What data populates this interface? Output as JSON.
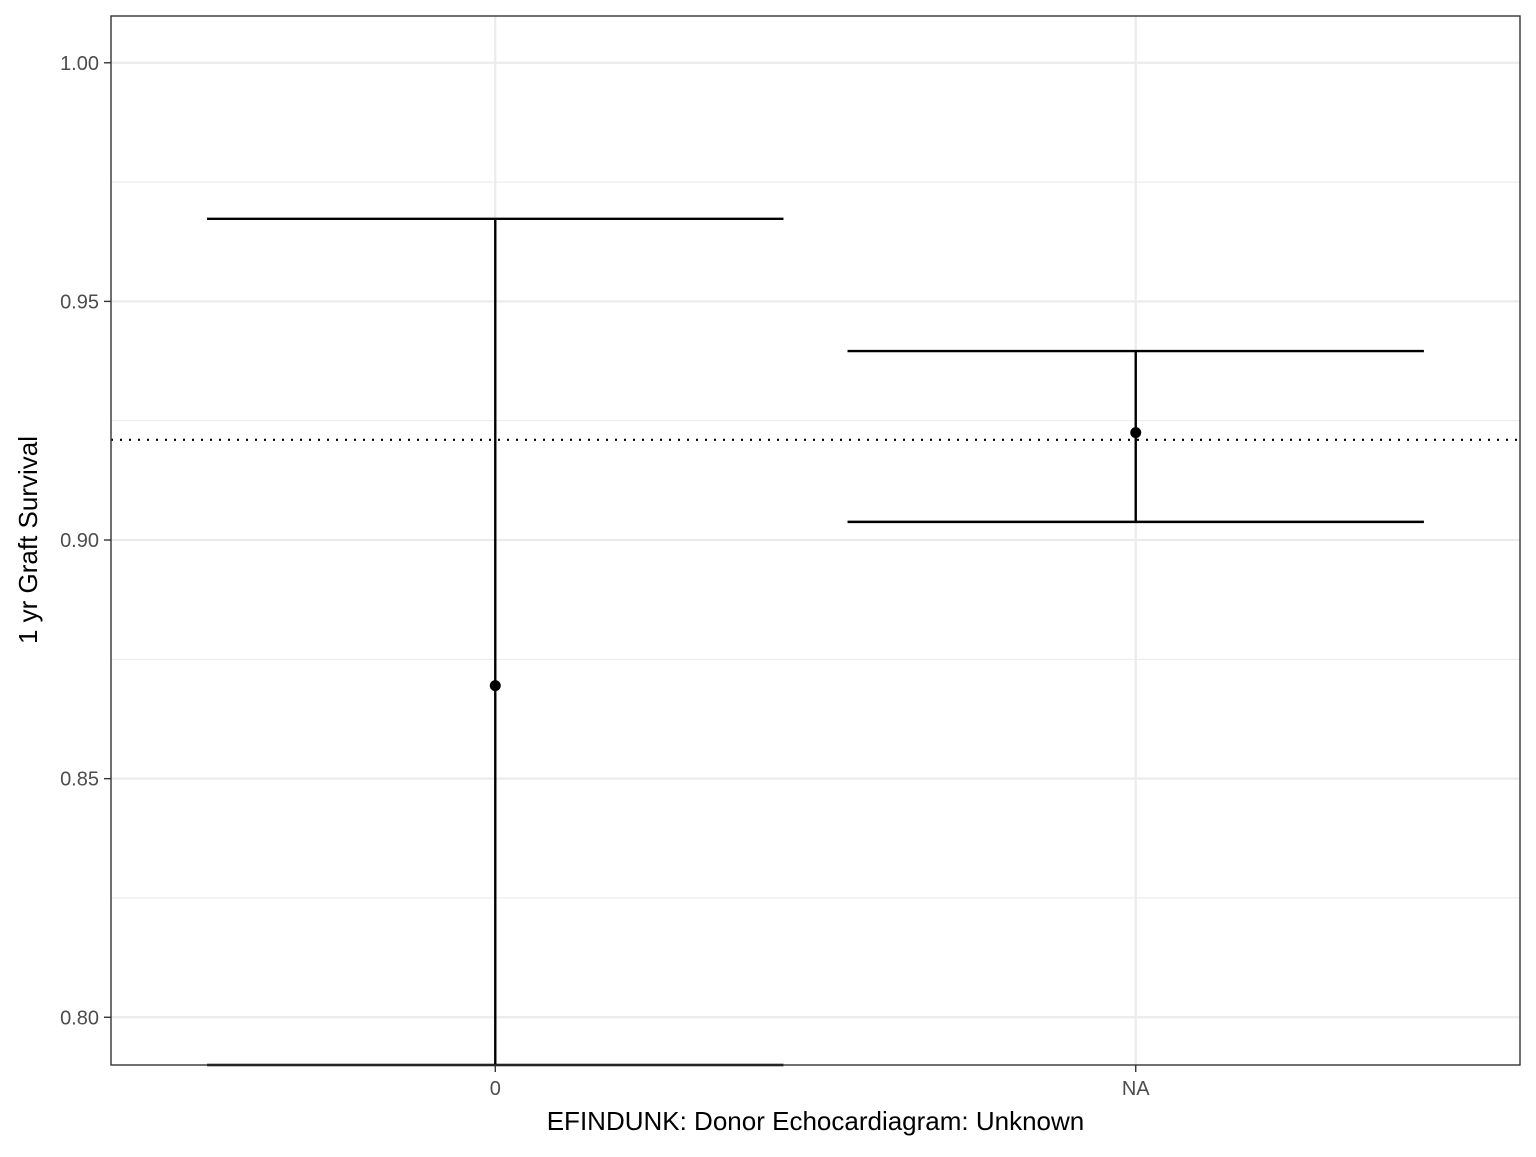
{
  "chart_data": {
    "type": "errorbar",
    "title": "",
    "xlabel": "EFINDUNK: Donor Echocardiagram: Unknown",
    "ylabel": "1 yr Graft Survival",
    "categories": [
      "0",
      "NA"
    ],
    "series": [
      {
        "points": [
          {
            "category": "0",
            "estimate": 0.8695,
            "lower": 0.79,
            "upper": 0.9673
          },
          {
            "category": "NA",
            "estimate": 0.9225,
            "lower": 0.9038,
            "upper": 0.9396
          }
        ]
      }
    ],
    "reference_line": {
      "y": 0.921,
      "style": "dotted"
    },
    "ylim": [
      0.79,
      1.0098
    ],
    "y_ticks": [
      {
        "value": 0.8,
        "label": "0.80"
      },
      {
        "value": 0.85,
        "label": "0.85"
      },
      {
        "value": 0.9,
        "label": "0.90"
      },
      {
        "value": 0.95,
        "label": "0.95"
      },
      {
        "value": 1.0,
        "label": "1.00"
      }
    ],
    "y_minor_ticks": [
      0.825,
      0.875,
      0.925,
      0.975
    ],
    "grid": true,
    "legend": "none",
    "colors": {
      "marks": "#000000",
      "grid": "#ebebeb",
      "panel_border": "#333333"
    }
  }
}
